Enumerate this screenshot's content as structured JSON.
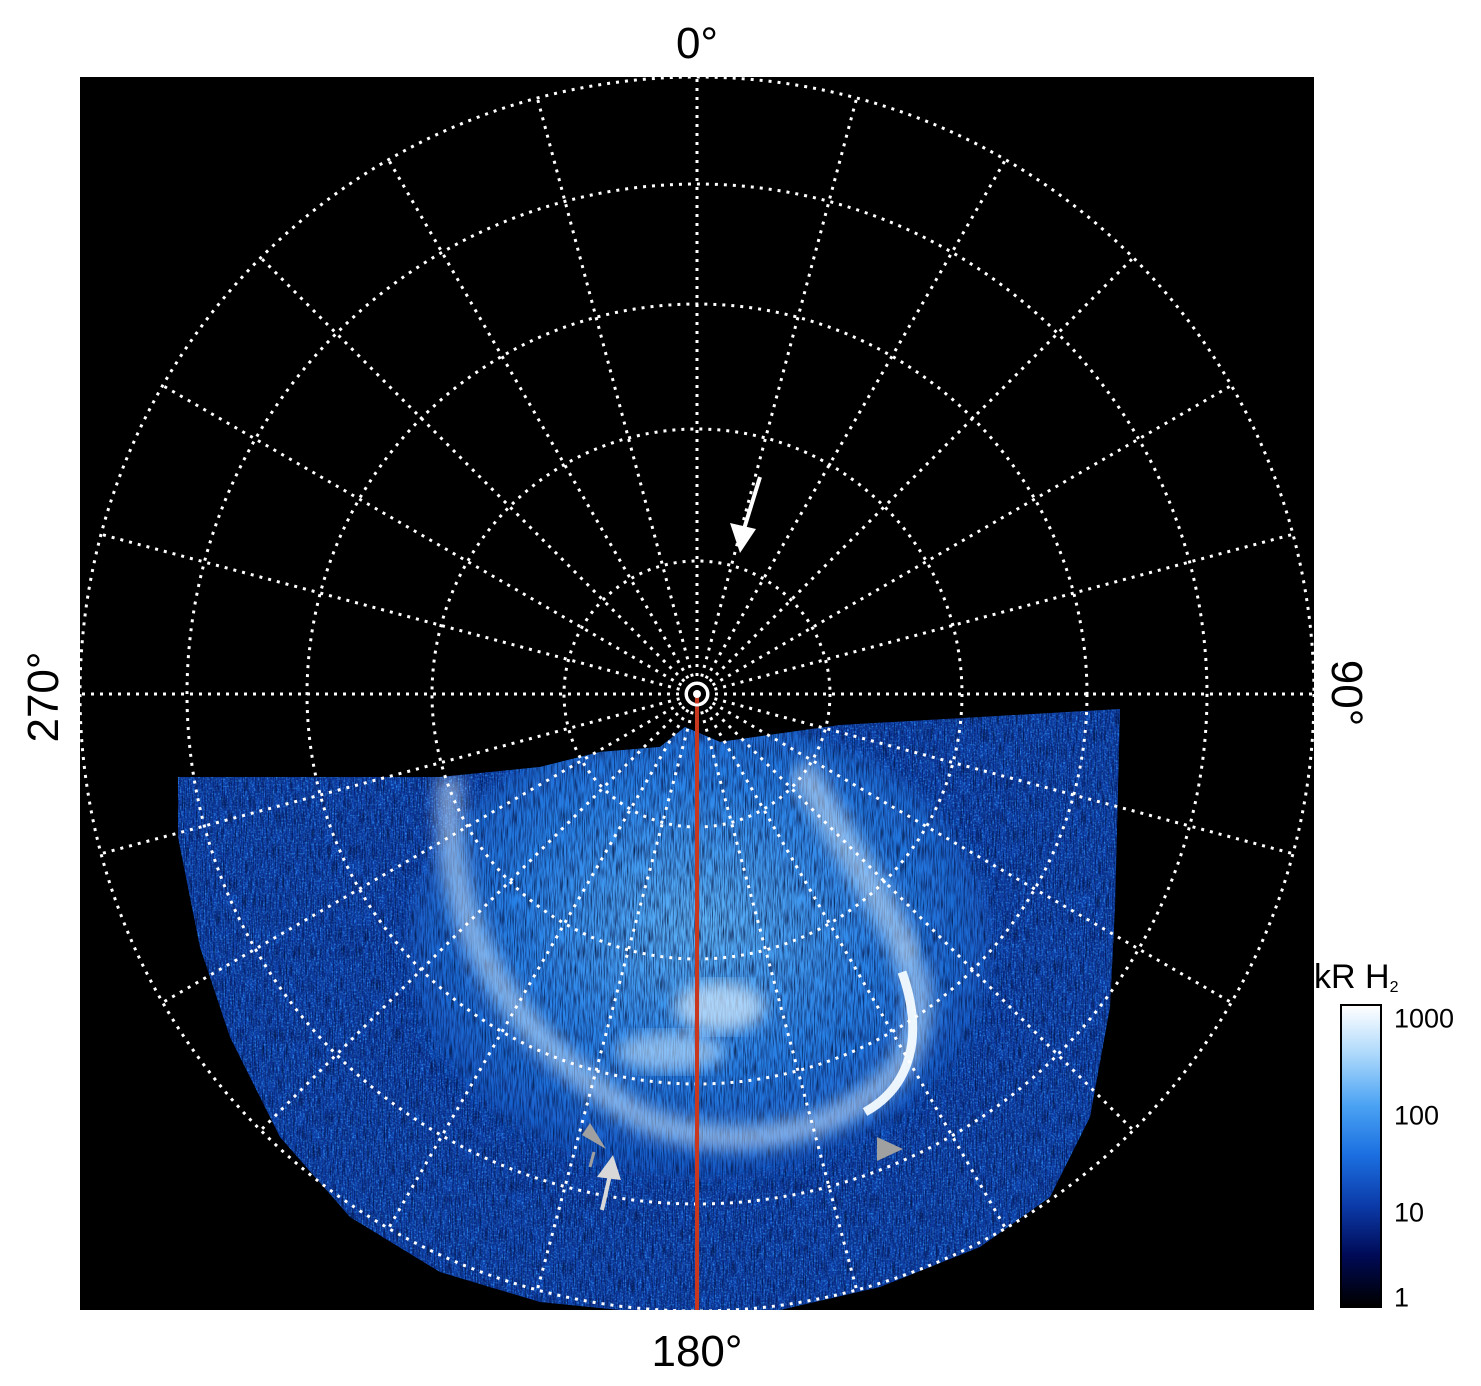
{
  "axis_labels": {
    "top": "0°",
    "right": "90°",
    "bottom": "180°",
    "left": "270°"
  },
  "colorbar": {
    "title_main": "kR H",
    "title_sub": "2",
    "ticks": [
      "1000",
      "100",
      "10",
      "1"
    ],
    "scale": "log",
    "range": [
      1,
      1000
    ],
    "colors": [
      "#000000",
      "#000a55",
      "#0b3aa8",
      "#1b6ee0",
      "#4aa2f3",
      "#a9d7fb",
      "#ffffff"
    ]
  },
  "image": {
    "background": "#000000",
    "grid_color": "#ffffff",
    "meridian_color": "#c8381e",
    "arrow_colors": {
      "primary": "#ffffff",
      "secondary": "#a0a0a0"
    }
  }
}
